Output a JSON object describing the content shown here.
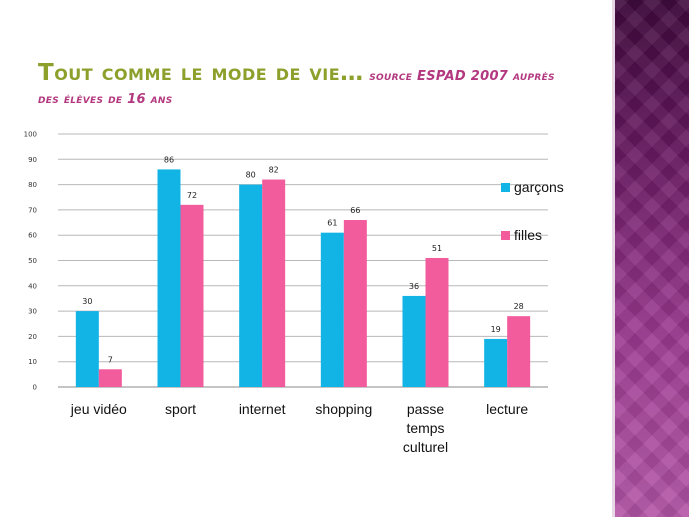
{
  "slide": {
    "title_main": "Tout comme le mode de vie…",
    "title_source": "source ESPAD 2007 auprès des élèves de 16 ans"
  },
  "chart_data": {
    "type": "bar",
    "categories": [
      [
        "jeu vidéo"
      ],
      [
        "sport"
      ],
      [
        "internet"
      ],
      [
        "shopping"
      ],
      [
        "passe",
        "temps",
        "culturel"
      ],
      [
        "lecture"
      ]
    ],
    "series": [
      {
        "name": "garçons",
        "values": [
          30,
          86,
          80,
          61,
          36,
          19
        ],
        "color": "#12b4e6"
      },
      {
        "name": "filles",
        "values": [
          7,
          72,
          82,
          66,
          51,
          28
        ],
        "color": "#f25c9c"
      }
    ],
    "ylim": [
      0,
      100
    ],
    "yticks": [
      0,
      10,
      20,
      30,
      40,
      50,
      60,
      70,
      80,
      90,
      100
    ],
    "grid": true,
    "legend": "right",
    "title": "",
    "xlabel": "",
    "ylabel": ""
  },
  "theme": {
    "accent_green": "#8ea02c",
    "accent_magenta": "#b3387f",
    "sidebar_purple": "#6a1a63"
  }
}
